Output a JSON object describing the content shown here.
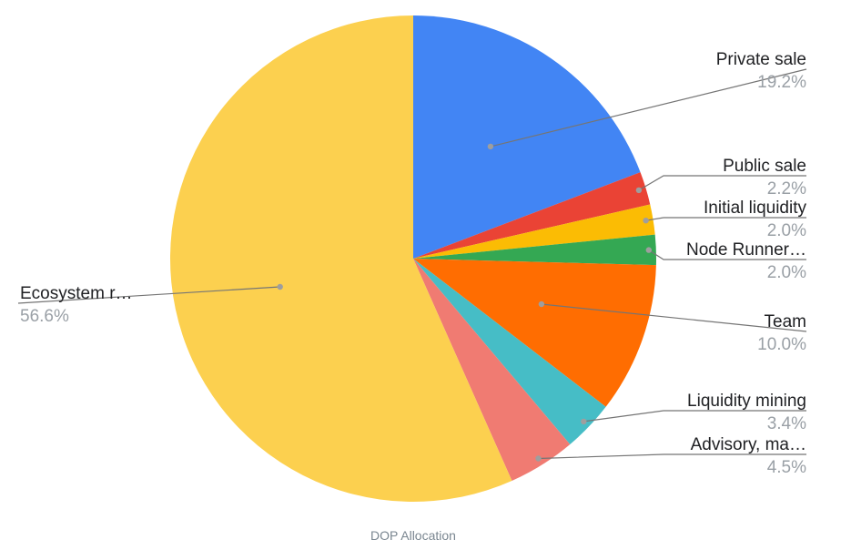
{
  "chart_data": {
    "type": "pie",
    "caption": "DOP Allocation",
    "slices": [
      {
        "label": "Private sale",
        "value": 19.2,
        "display": "19.2%",
        "color": "#4285f4"
      },
      {
        "label": "Public sale",
        "value": 2.2,
        "display": "2.2%",
        "color": "#ea4335"
      },
      {
        "label": "Initial liquidity",
        "value": 2.0,
        "display": "2.0%",
        "color": "#fbbc04"
      },
      {
        "label": "Node Runner…",
        "value": 2.0,
        "display": "2.0%",
        "color": "#34a853"
      },
      {
        "label": "Team",
        "value": 10.0,
        "display": "10.0%",
        "color": "#ff6d01"
      },
      {
        "label": "Liquidity mining",
        "value": 3.4,
        "display": "3.4%",
        "color": "#46bdc6"
      },
      {
        "label": "Advisory, ma…",
        "value": 4.5,
        "display": "4.5%",
        "color": "#f07b72"
      },
      {
        "label": "Ecosystem r…",
        "value": 56.6,
        "display": "56.6%",
        "color": "#fcd04f"
      }
    ],
    "start_angle_deg": 0,
    "direction": "clockwise"
  }
}
